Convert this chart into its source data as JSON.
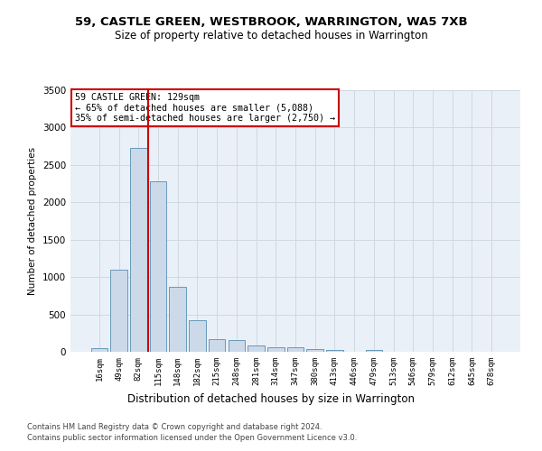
{
  "title1": "59, CASTLE GREEN, WESTBROOK, WARRINGTON, WA5 7XB",
  "title2": "Size of property relative to detached houses in Warrington",
  "xlabel": "Distribution of detached houses by size in Warrington",
  "ylabel": "Number of detached properties",
  "categories": [
    "16sqm",
    "49sqm",
    "82sqm",
    "115sqm",
    "148sqm",
    "182sqm",
    "215sqm",
    "248sqm",
    "281sqm",
    "314sqm",
    "347sqm",
    "380sqm",
    "413sqm",
    "446sqm",
    "479sqm",
    "513sqm",
    "546sqm",
    "579sqm",
    "612sqm",
    "645sqm",
    "678sqm"
  ],
  "values": [
    50,
    1100,
    2730,
    2280,
    875,
    420,
    165,
    160,
    90,
    60,
    55,
    35,
    30,
    5,
    20,
    0,
    0,
    0,
    0,
    0,
    0
  ],
  "bar_color": "#ccd9e8",
  "bar_edge_color": "#6699bb",
  "grid_color": "#d0d8e0",
  "bg_color": "#eaf0f8",
  "vline_color": "#cc0000",
  "annotation_text": "59 CASTLE GREEN: 129sqm\n← 65% of detached houses are smaller (5,088)\n35% of semi-detached houses are larger (2,750) →",
  "annotation_box_color": "white",
  "annotation_box_edge": "#cc0000",
  "ylim": [
    0,
    3500
  ],
  "yticks": [
    0,
    500,
    1000,
    1500,
    2000,
    2500,
    3000,
    3500
  ],
  "footnote1": "Contains HM Land Registry data © Crown copyright and database right 2024.",
  "footnote2": "Contains public sector information licensed under the Open Government Licence v3.0."
}
